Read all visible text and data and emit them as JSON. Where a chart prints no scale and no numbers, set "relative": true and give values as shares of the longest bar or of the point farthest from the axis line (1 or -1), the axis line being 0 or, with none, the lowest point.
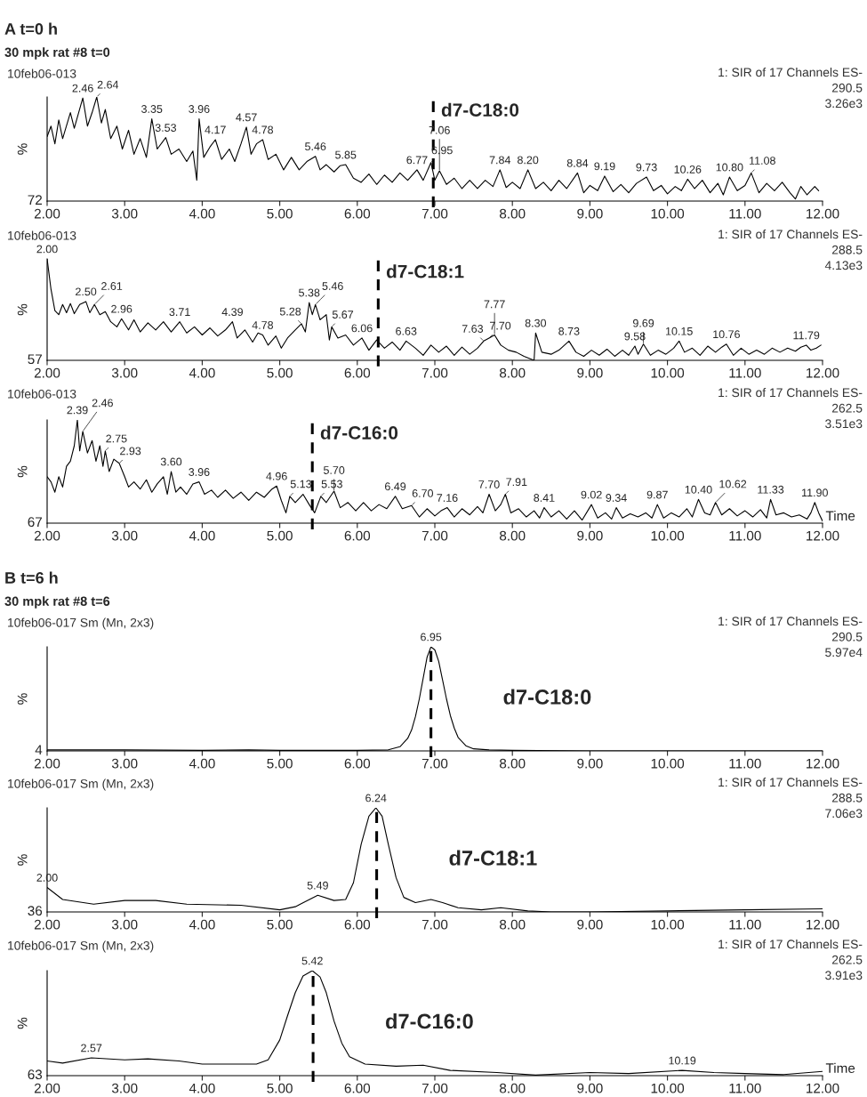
{
  "chart_data": [
    {
      "type": "line",
      "relative": true,
      "title": "A t=0 h",
      "subtitle": "30 mpk rat #8 t=0",
      "ylabel": "%",
      "xlim": [
        2,
        12
      ],
      "xticks": [
        {
          "value": 2,
          "label": "2.00"
        },
        {
          "value": 3,
          "label": "3.00"
        },
        {
          "value": 4,
          "label": "4.00"
        },
        {
          "value": 5,
          "label": "5.00"
        },
        {
          "value": 6,
          "label": "6.00"
        },
        {
          "value": 7,
          "label": "7.00"
        },
        {
          "value": 8,
          "label": "8.00"
        },
        {
          "value": 9,
          "label": "9.00"
        },
        {
          "value": 10,
          "label": "10.00"
        },
        {
          "value": 11,
          "label": "11.00"
        },
        {
          "value": 12,
          "label": "12.00"
        }
      ],
      "series": [
        {
          "color": "#000000",
          "x": [
            2.0,
            2.05,
            2.1,
            2.15,
            2.2,
            2.3,
            2.35,
            2.46,
            2.52,
            2.58,
            2.64,
            2.7,
            2.75,
            2.82,
            2.9,
            2.97,
            3.05,
            3.12,
            3.2,
            3.28,
            3.35,
            3.42,
            3.53,
            3.6,
            3.7,
            3.8,
            3.88,
            3.93,
            3.96,
            4.02,
            4.1,
            4.17,
            4.25,
            4.35,
            4.42,
            4.5,
            4.57,
            4.63,
            4.7,
            4.78,
            4.85,
            4.95,
            5.05,
            5.15,
            5.25,
            5.35,
            5.46,
            5.52,
            5.6,
            5.7,
            5.78,
            5.85,
            5.95,
            6.05,
            6.15,
            6.25,
            6.35,
            6.45,
            6.55,
            6.65,
            6.77,
            6.85,
            6.95,
            7.0,
            7.06,
            7.15,
            7.25,
            7.35,
            7.45,
            7.55,
            7.65,
            7.75,
            7.84,
            7.92,
            8.0,
            8.1,
            8.2,
            8.3,
            8.4,
            8.5,
            8.6,
            8.7,
            8.84,
            8.92,
            9.0,
            9.1,
            9.19,
            9.3,
            9.4,
            9.5,
            9.6,
            9.73,
            9.82,
            9.92,
            10.0,
            10.1,
            10.18,
            10.26,
            10.35,
            10.45,
            10.55,
            10.65,
            10.72,
            10.8,
            10.9,
            11.0,
            11.08,
            11.18,
            11.28,
            11.38,
            11.48,
            11.58,
            11.65,
            11.72,
            11.8,
            11.9,
            11.95
          ],
          "values": [
            0.62,
            0.72,
            0.55,
            0.78,
            0.6,
            0.85,
            0.7,
            0.99,
            0.72,
            0.85,
            1.0,
            0.75,
            0.88,
            0.6,
            0.72,
            0.5,
            0.68,
            0.45,
            0.6,
            0.42,
            0.79,
            0.5,
            0.61,
            0.45,
            0.5,
            0.38,
            0.48,
            0.2,
            0.79,
            0.42,
            0.52,
            0.59,
            0.4,
            0.5,
            0.38,
            0.55,
            0.71,
            0.45,
            0.55,
            0.59,
            0.4,
            0.45,
            0.3,
            0.42,
            0.3,
            0.38,
            0.43,
            0.3,
            0.35,
            0.28,
            0.34,
            0.35,
            0.22,
            0.18,
            0.26,
            0.16,
            0.25,
            0.18,
            0.27,
            0.2,
            0.3,
            0.2,
            0.37,
            0.2,
            0.29,
            0.16,
            0.22,
            0.12,
            0.2,
            0.12,
            0.2,
            0.14,
            0.3,
            0.13,
            0.18,
            0.12,
            0.3,
            0.12,
            0.18,
            0.1,
            0.2,
            0.12,
            0.27,
            0.08,
            0.15,
            0.1,
            0.24,
            0.09,
            0.16,
            0.08,
            0.17,
            0.23,
            0.1,
            0.15,
            0.07,
            0.14,
            0.1,
            0.21,
            0.12,
            0.2,
            0.08,
            0.17,
            0.06,
            0.23,
            0.1,
            0.15,
            0.27,
            0.08,
            0.17,
            0.1,
            0.18,
            0.08,
            0.02,
            0.14,
            0.06,
            0.14,
            0.1
          ]
        }
      ],
      "ref_lines": [
        {
          "axis": "x",
          "value": 6.98,
          "color": "#000000",
          "line_style": "dashed"
        }
      ],
      "annotations": [
        "10feb06-013",
        "1: SIR of 17 Channels ES-\n290.5\n3.26e3",
        "72",
        "d7-C18:0",
        {
          "text": "2.46",
          "x": 2.46,
          "y": 0.99
        },
        {
          "text": "2.64",
          "x": 2.64,
          "y": 1.0
        },
        {
          "text": "3.35",
          "x": 3.35,
          "y": 0.79
        },
        {
          "text": "3.53",
          "x": 3.53,
          "y": 0.61
        },
        {
          "text": "3.96",
          "x": 3.96,
          "y": 0.79
        },
        {
          "text": "4.17",
          "x": 4.17,
          "y": 0.59
        },
        {
          "text": "4.57",
          "x": 4.57,
          "y": 0.71
        },
        {
          "text": "4.78",
          "x": 4.78,
          "y": 0.59
        },
        {
          "text": "5.46",
          "x": 5.46,
          "y": 0.43
        },
        {
          "text": "5.85",
          "x": 5.85,
          "y": 0.35
        },
        {
          "text": "6.77",
          "x": 6.77,
          "y": 0.3
        },
        {
          "text": "6.95",
          "x": 6.95,
          "y": 0.37
        },
        {
          "text": "7.06",
          "x": 7.06,
          "y": 0.29
        },
        {
          "text": "7.84",
          "x": 7.84,
          "y": 0.3
        },
        {
          "text": "8.20",
          "x": 8.2,
          "y": 0.3
        },
        {
          "text": "8.84",
          "x": 8.84,
          "y": 0.27
        },
        {
          "text": "9.19",
          "x": 9.19,
          "y": 0.24
        },
        {
          "text": "9.73",
          "x": 9.73,
          "y": 0.23
        },
        {
          "text": "10.26",
          "x": 10.26,
          "y": 0.21
        },
        {
          "text": "10.80",
          "x": 10.8,
          "y": 0.23
        },
        {
          "text": "11.08",
          "x": 11.08,
          "y": 0.27
        }
      ]
    },
    {
      "type": "line",
      "relative": true,
      "ylabel": "%",
      "xlim": [
        2,
        12
      ],
      "xticks": [
        {
          "value": 2,
          "label": "2.00"
        },
        {
          "value": 3,
          "label": "3.00"
        },
        {
          "value": 4,
          "label": "4.00"
        },
        {
          "value": 5,
          "label": "5.00"
        },
        {
          "value": 6,
          "label": "6.00"
        },
        {
          "value": 7,
          "label": "7.00"
        },
        {
          "value": 8,
          "label": "8.00"
        },
        {
          "value": 9,
          "label": "9.00"
        },
        {
          "value": 10,
          "label": "10.00"
        },
        {
          "value": 11,
          "label": "11.00"
        },
        {
          "value": 12,
          "label": "12.00"
        }
      ],
      "series": [
        {
          "color": "#000000",
          "x": [
            2.0,
            2.05,
            2.1,
            2.15,
            2.2,
            2.25,
            2.3,
            2.35,
            2.42,
            2.5,
            2.55,
            2.61,
            2.68,
            2.75,
            2.82,
            2.9,
            2.96,
            3.05,
            3.12,
            3.2,
            3.3,
            3.4,
            3.5,
            3.6,
            3.71,
            3.8,
            3.9,
            4.0,
            4.1,
            4.2,
            4.3,
            4.39,
            4.45,
            4.55,
            4.65,
            4.72,
            4.78,
            4.85,
            4.95,
            5.02,
            5.1,
            5.2,
            5.28,
            5.33,
            5.38,
            5.42,
            5.46,
            5.52,
            5.6,
            5.64,
            5.67,
            5.75,
            5.85,
            5.95,
            6.06,
            6.15,
            6.25,
            6.35,
            6.45,
            6.55,
            6.63,
            6.75,
            6.85,
            6.95,
            7.05,
            7.15,
            7.25,
            7.35,
            7.45,
            7.55,
            7.63,
            7.7,
            7.77,
            7.85,
            7.95,
            8.05,
            8.15,
            8.28,
            8.3,
            8.38,
            8.5,
            8.6,
            8.73,
            8.82,
            8.92,
            9.02,
            9.12,
            9.22,
            9.32,
            9.42,
            9.5,
            9.58,
            9.62,
            9.69,
            9.78,
            9.88,
            9.98,
            10.08,
            10.15,
            10.22,
            10.32,
            10.42,
            10.52,
            10.62,
            10.7,
            10.76,
            10.85,
            10.95,
            11.05,
            11.15,
            11.25,
            11.35,
            11.45,
            11.55,
            11.65,
            11.72,
            11.79,
            11.85,
            11.92,
            11.98
          ],
          "values": [
            1.0,
            0.7,
            0.49,
            0.45,
            0.55,
            0.47,
            0.56,
            0.46,
            0.55,
            0.58,
            0.47,
            0.55,
            0.45,
            0.48,
            0.38,
            0.33,
            0.41,
            0.3,
            0.4,
            0.28,
            0.37,
            0.3,
            0.38,
            0.28,
            0.38,
            0.27,
            0.33,
            0.25,
            0.32,
            0.24,
            0.3,
            0.38,
            0.22,
            0.3,
            0.18,
            0.27,
            0.25,
            0.15,
            0.24,
            0.12,
            0.22,
            0.3,
            0.36,
            0.28,
            0.57,
            0.45,
            0.55,
            0.4,
            0.45,
            0.2,
            0.33,
            0.22,
            0.25,
            0.15,
            0.22,
            0.1,
            0.2,
            0.12,
            0.18,
            0.1,
            0.19,
            0.12,
            0.05,
            0.15,
            0.08,
            0.14,
            0.05,
            0.13,
            0.06,
            0.12,
            0.19,
            0.22,
            0.25,
            0.15,
            0.1,
            0.08,
            0.04,
            0.0,
            0.27,
            0.08,
            0.06,
            0.1,
            0.19,
            0.08,
            0.04,
            0.1,
            0.05,
            0.11,
            0.04,
            0.1,
            0.05,
            0.14,
            0.06,
            0.16,
            0.05,
            0.1,
            0.06,
            0.12,
            0.19,
            0.08,
            0.12,
            0.05,
            0.14,
            0.08,
            0.13,
            0.16,
            0.05,
            0.12,
            0.06,
            0.1,
            0.06,
            0.12,
            0.08,
            0.12,
            0.09,
            0.13,
            0.15,
            0.1,
            0.12,
            0.15
          ]
        }
      ],
      "ref_lines": [
        {
          "axis": "x",
          "value": 6.27,
          "color": "#000000",
          "line_style": "dashed"
        }
      ],
      "annotations": [
        "10feb06-013",
        "1: SIR of 17 Channels ES-\n288.5\n4.13e3",
        "57",
        "d7-C18:1",
        {
          "text": "2.00",
          "x": 2.0,
          "y": 1.0
        },
        {
          "text": "2.50",
          "x": 2.5,
          "y": 0.58
        },
        {
          "text": "2.61",
          "x": 2.61,
          "y": 0.55
        },
        {
          "text": "2.96",
          "x": 2.96,
          "y": 0.41
        },
        {
          "text": "3.71",
          "x": 3.71,
          "y": 0.38
        },
        {
          "text": "4.39",
          "x": 4.39,
          "y": 0.38
        },
        {
          "text": "4.78",
          "x": 4.78,
          "y": 0.25
        },
        {
          "text": "5.28",
          "x": 5.28,
          "y": 0.36
        },
        {
          "text": "5.38",
          "x": 5.38,
          "y": 0.57
        },
        {
          "text": "5.46",
          "x": 5.46,
          "y": 0.55
        },
        {
          "text": "5.67",
          "x": 5.67,
          "y": 0.33
        },
        {
          "text": "6.06",
          "x": 6.06,
          "y": 0.22
        },
        {
          "text": "6.63",
          "x": 6.63,
          "y": 0.19
        },
        {
          "text": "7.63",
          "x": 7.63,
          "y": 0.19
        },
        {
          "text": "7.70",
          "x": 7.7,
          "y": 0.22
        },
        {
          "text": "7.77",
          "x": 7.77,
          "y": 0.25
        },
        {
          "text": "8.30",
          "x": 8.3,
          "y": 0.27
        },
        {
          "text": "8.73",
          "x": 8.73,
          "y": 0.19
        },
        {
          "text": "9.58",
          "x": 9.58,
          "y": 0.14
        },
        {
          "text": "9.69",
          "x": 9.69,
          "y": 0.16
        },
        {
          "text": "10.15",
          "x": 10.15,
          "y": 0.19
        },
        {
          "text": "10.76",
          "x": 10.76,
          "y": 0.16
        },
        {
          "text": "11.79",
          "x": 11.79,
          "y": 0.15
        }
      ]
    },
    {
      "type": "line",
      "relative": true,
      "ylabel": "%",
      "xlabel": "Time",
      "xlim": [
        2,
        12
      ],
      "xticks": [
        {
          "value": 2,
          "label": "2.00"
        },
        {
          "value": 3,
          "label": "3.00"
        },
        {
          "value": 4,
          "label": "4.00"
        },
        {
          "value": 5,
          "label": "5.00"
        },
        {
          "value": 6,
          "label": "6.00"
        },
        {
          "value": 7,
          "label": "7.00"
        },
        {
          "value": 8,
          "label": "8.00"
        },
        {
          "value": 9,
          "label": "9.00"
        },
        {
          "value": 10,
          "label": "10.00"
        },
        {
          "value": 11,
          "label": "11.00"
        },
        {
          "value": 12,
          "label": "12.00"
        }
      ],
      "series": [
        {
          "color": "#000000",
          "x": [
            2.0,
            2.05,
            2.1,
            2.15,
            2.2,
            2.25,
            2.3,
            2.35,
            2.39,
            2.42,
            2.46,
            2.52,
            2.58,
            2.63,
            2.68,
            2.72,
            2.75,
            2.8,
            2.86,
            2.93,
            3.0,
            3.05,
            3.12,
            3.2,
            3.28,
            3.35,
            3.42,
            3.5,
            3.55,
            3.6,
            3.66,
            3.72,
            3.8,
            3.88,
            3.96,
            4.03,
            4.12,
            4.2,
            4.3,
            4.4,
            4.5,
            4.6,
            4.7,
            4.8,
            4.9,
            4.96,
            5.02,
            5.08,
            5.13,
            5.2,
            5.3,
            5.38,
            5.45,
            5.53,
            5.6,
            5.7,
            5.78,
            5.88,
            5.98,
            6.08,
            6.18,
            6.28,
            6.38,
            6.49,
            6.58,
            6.7,
            6.8,
            6.9,
            7.0,
            7.08,
            7.16,
            7.25,
            7.35,
            7.45,
            7.55,
            7.62,
            7.7,
            7.78,
            7.85,
            7.91,
            7.98,
            8.08,
            8.18,
            8.28,
            8.35,
            8.41,
            8.5,
            8.6,
            8.7,
            8.8,
            8.9,
            9.02,
            9.1,
            9.2,
            9.28,
            9.34,
            9.42,
            9.52,
            9.62,
            9.72,
            9.8,
            9.87,
            9.95,
            10.05,
            10.15,
            10.25,
            10.32,
            10.4,
            10.48,
            10.55,
            10.62,
            10.7,
            10.8,
            10.9,
            11.0,
            11.1,
            11.2,
            11.28,
            11.33,
            11.4,
            11.5,
            11.6,
            11.7,
            11.8,
            11.85,
            11.9,
            11.95,
            12.0
          ],
          "values": [
            0.45,
            0.4,
            0.3,
            0.45,
            0.35,
            0.55,
            0.6,
            0.75,
            1.0,
            0.7,
            0.89,
            0.68,
            0.8,
            0.6,
            0.75,
            0.55,
            0.7,
            0.5,
            0.62,
            0.58,
            0.45,
            0.35,
            0.4,
            0.33,
            0.42,
            0.3,
            0.38,
            0.45,
            0.28,
            0.5,
            0.3,
            0.35,
            0.28,
            0.38,
            0.4,
            0.28,
            0.32,
            0.25,
            0.32,
            0.24,
            0.3,
            0.22,
            0.3,
            0.25,
            0.33,
            0.36,
            0.22,
            0.1,
            0.26,
            0.2,
            0.28,
            0.18,
            0.1,
            0.26,
            0.2,
            0.31,
            0.15,
            0.2,
            0.12,
            0.2,
            0.12,
            0.18,
            0.14,
            0.26,
            0.14,
            0.17,
            0.06,
            0.14,
            0.07,
            0.12,
            0.15,
            0.06,
            0.14,
            0.08,
            0.16,
            0.1,
            0.28,
            0.12,
            0.18,
            0.28,
            0.1,
            0.14,
            0.06,
            0.12,
            0.05,
            0.15,
            0.06,
            0.12,
            0.04,
            0.12,
            0.03,
            0.18,
            0.05,
            0.1,
            0.04,
            0.15,
            0.05,
            0.09,
            0.06,
            0.1,
            0.05,
            0.18,
            0.05,
            0.1,
            0.06,
            0.14,
            0.06,
            0.23,
            0.1,
            0.08,
            0.2,
            0.08,
            0.14,
            0.07,
            0.12,
            0.06,
            0.13,
            0.05,
            0.23,
            0.08,
            0.1,
            0.06,
            0.08,
            0.04,
            0.1,
            0.2,
            0.1,
            0.02
          ]
        }
      ],
      "ref_lines": [
        {
          "axis": "x",
          "value": 5.42,
          "color": "#000000",
          "line_style": "dashed"
        }
      ],
      "annotations": [
        "10feb06-013",
        "1: SIR of 17 Channels ES-\n262.5\n3.51e3",
        "67",
        "d7-C16:0",
        {
          "text": "2.39",
          "x": 2.39,
          "y": 1.0
        },
        {
          "text": "2.46",
          "x": 2.46,
          "y": 0.89
        },
        {
          "text": "2.75",
          "x": 2.75,
          "y": 0.7
        },
        {
          "text": "2.93",
          "x": 2.93,
          "y": 0.58
        },
        {
          "text": "3.60",
          "x": 3.6,
          "y": 0.5
        },
        {
          "text": "3.96",
          "x": 3.96,
          "y": 0.4
        },
        {
          "text": "4.96",
          "x": 4.96,
          "y": 0.36
        },
        {
          "text": "5.13",
          "x": 5.13,
          "y": 0.26
        },
        {
          "text": "5.53",
          "x": 5.53,
          "y": 0.26
        },
        {
          "text": "5.70",
          "x": 5.7,
          "y": 0.31
        },
        {
          "text": "6.49",
          "x": 6.49,
          "y": 0.26
        },
        {
          "text": "6.70",
          "x": 6.7,
          "y": 0.17
        },
        {
          "text": "7.16",
          "x": 7.16,
          "y": 0.15
        },
        {
          "text": "7.70",
          "x": 7.7,
          "y": 0.28
        },
        {
          "text": "7.91",
          "x": 7.91,
          "y": 0.28
        },
        {
          "text": "8.41",
          "x": 8.41,
          "y": 0.15
        },
        {
          "text": "9.02",
          "x": 9.02,
          "y": 0.18
        },
        {
          "text": "9.34",
          "x": 9.34,
          "y": 0.15
        },
        {
          "text": "9.87",
          "x": 9.87,
          "y": 0.18
        },
        {
          "text": "10.40",
          "x": 10.4,
          "y": 0.23
        },
        {
          "text": "10.62",
          "x": 10.62,
          "y": 0.2
        },
        {
          "text": "11.33",
          "x": 11.33,
          "y": 0.23
        },
        {
          "text": "11.90",
          "x": 11.9,
          "y": 0.2
        }
      ]
    },
    {
      "type": "line",
      "relative": true,
      "title": "B t=6 h",
      "subtitle": "30 mpk rat #8 t=6",
      "ylabel": "%",
      "xlim": [
        2,
        12
      ],
      "xticks": [
        {
          "value": 2,
          "label": "2.00"
        },
        {
          "value": 3,
          "label": "3.00"
        },
        {
          "value": 4,
          "label": "4.00"
        },
        {
          "value": 5,
          "label": "5.00"
        },
        {
          "value": 6,
          "label": "6.00"
        },
        {
          "value": 7,
          "label": "7.00"
        },
        {
          "value": 8,
          "label": "8.00"
        },
        {
          "value": 9,
          "label": "9.00"
        },
        {
          "value": 10,
          "label": "10.00"
        },
        {
          "value": 11,
          "label": "11.00"
        },
        {
          "value": 12,
          "label": "12.00"
        }
      ],
      "series": [
        {
          "color": "#000000",
          "x": [
            2.0,
            3.0,
            4.0,
            4.6,
            5.0,
            6.0,
            6.4,
            6.55,
            6.65,
            6.7,
            6.75,
            6.8,
            6.85,
            6.9,
            6.95,
            7.0,
            7.05,
            7.1,
            7.15,
            7.2,
            7.25,
            7.3,
            7.4,
            7.5,
            7.7,
            8.0,
            9.0,
            10.0,
            11.0,
            12.0
          ],
          "values": [
            0.01,
            0.01,
            0.005,
            0.01,
            0.005,
            0.005,
            0.01,
            0.04,
            0.12,
            0.2,
            0.33,
            0.5,
            0.7,
            0.9,
            1.0,
            0.97,
            0.86,
            0.68,
            0.5,
            0.34,
            0.22,
            0.13,
            0.05,
            0.02,
            0.01,
            0.005,
            0.0,
            0.0,
            0.0,
            0.0
          ]
        }
      ],
      "ref_lines": [
        {
          "axis": "x",
          "value": 6.95,
          "color": "#000000",
          "line_style": "dashed"
        }
      ],
      "annotations": [
        "10feb06-017 Sm (Mn, 2x3)",
        "1: SIR of 17 Channels ES-\n290.5\n5.97e4",
        "4",
        "d7-C18:0",
        {
          "text": "6.95",
          "x": 6.95,
          "y": 1.0
        }
      ]
    },
    {
      "type": "line",
      "relative": true,
      "ylabel": "%",
      "xlim": [
        2,
        12
      ],
      "xticks": [
        {
          "value": 2,
          "label": "2.00"
        },
        {
          "value": 3,
          "label": "3.00"
        },
        {
          "value": 4,
          "label": "4.00"
        },
        {
          "value": 5,
          "label": "5.00"
        },
        {
          "value": 6,
          "label": "6.00"
        },
        {
          "value": 7,
          "label": "7.00"
        },
        {
          "value": 8,
          "label": "8.00"
        },
        {
          "value": 9,
          "label": "9.00"
        },
        {
          "value": 10,
          "label": "10.00"
        },
        {
          "value": 11,
          "label": "11.00"
        },
        {
          "value": 12,
          "label": "12.00"
        }
      ],
      "series": [
        {
          "color": "#000000",
          "x": [
            2.0,
            2.2,
            2.6,
            3.0,
            3.4,
            3.8,
            4.5,
            5.0,
            5.2,
            5.49,
            5.7,
            5.85,
            5.95,
            6.05,
            6.15,
            6.24,
            6.32,
            6.4,
            6.5,
            6.6,
            6.75,
            6.95,
            7.1,
            7.3,
            7.6,
            7.85,
            8.2,
            8.5,
            9.0,
            10.0,
            11.0,
            12.0
          ],
          "values": [
            0.235,
            0.12,
            0.075,
            0.11,
            0.11,
            0.075,
            0.064,
            0.02,
            0.05,
            0.16,
            0.11,
            0.12,
            0.28,
            0.65,
            0.92,
            1.0,
            0.92,
            0.65,
            0.33,
            0.14,
            0.09,
            0.12,
            0.09,
            0.04,
            0.02,
            0.04,
            0.01,
            0.0,
            0.0,
            0.01,
            0.02,
            0.03
          ]
        }
      ],
      "ref_lines": [
        {
          "axis": "x",
          "value": 6.25,
          "color": "#000000",
          "line_style": "dashed"
        }
      ],
      "annotations": [
        "10feb06-017 Sm (Mn, 2x3)",
        "1: SIR of 17 Channels ES-\n288.5\n7.06e3",
        "36",
        "d7-C18:1",
        {
          "text": "2.00",
          "x": 2.0,
          "y": 0.235
        },
        {
          "text": "5.49",
          "x": 5.49,
          "y": 0.16
        },
        {
          "text": "6.24",
          "x": 6.24,
          "y": 1.0
        }
      ]
    },
    {
      "type": "line",
      "relative": true,
      "ylabel": "%",
      "xlabel": "Time",
      "xlim": [
        2,
        12
      ],
      "xticks": [
        {
          "value": 2,
          "label": "2.00"
        },
        {
          "value": 3,
          "label": "3.00"
        },
        {
          "value": 4,
          "label": "4.00"
        },
        {
          "value": 5,
          "label": "5.00"
        },
        {
          "value": 6,
          "label": "6.00"
        },
        {
          "value": 7,
          "label": "7.00"
        },
        {
          "value": 8,
          "label": "8.00"
        },
        {
          "value": 9,
          "label": "9.00"
        },
        {
          "value": 10,
          "label": "10.00"
        },
        {
          "value": 11,
          "label": "11.00"
        },
        {
          "value": 12,
          "label": "12.00"
        }
      ],
      "series": [
        {
          "color": "#000000",
          "x": [
            2.0,
            2.2,
            2.57,
            3.0,
            3.3,
            3.7,
            4.0,
            4.7,
            4.85,
            5.0,
            5.1,
            5.2,
            5.3,
            5.42,
            5.52,
            5.6,
            5.7,
            5.8,
            5.9,
            6.1,
            6.5,
            6.85,
            7.2,
            7.8,
            8.3,
            9.0,
            9.5,
            10.19,
            10.6,
            11.0,
            11.5,
            12.0
          ],
          "values": [
            0.14,
            0.12,
            0.17,
            0.15,
            0.16,
            0.14,
            0.11,
            0.11,
            0.15,
            0.34,
            0.57,
            0.79,
            0.95,
            1.0,
            0.94,
            0.79,
            0.52,
            0.31,
            0.18,
            0.11,
            0.09,
            0.1,
            0.05,
            0.03,
            0.005,
            0.03,
            0.02,
            0.05,
            0.03,
            0.02,
            0.01,
            0.04
          ]
        }
      ],
      "ref_lines": [
        {
          "axis": "x",
          "value": 5.43,
          "color": "#000000",
          "line_style": "dashed"
        }
      ],
      "annotations": [
        "10feb06-017 Sm (Mn, 2x3)",
        "1: SIR of 17 Channels ES-\n262.5\n3.91e3",
        "63",
        "d7-C16:0",
        {
          "text": "2.57",
          "x": 2.57,
          "y": 0.17
        },
        {
          "text": "5.42",
          "x": 5.42,
          "y": 1.0
        },
        {
          "text": "10.19",
          "x": 10.19,
          "y": 0.05
        }
      ]
    }
  ]
}
